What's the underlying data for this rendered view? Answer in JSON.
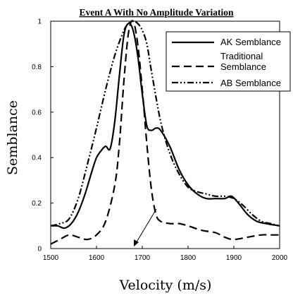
{
  "chart_data": {
    "type": "line",
    "title": "Event A With No Amplitude Variation",
    "xlabel": "Velocity (m/s)",
    "ylabel": "Semblance",
    "xlim": [
      1500,
      2000
    ],
    "ylim": [
      0,
      1
    ],
    "xticks": [
      1500,
      1600,
      1700,
      1800,
      1900,
      2000
    ],
    "yticks": [
      0,
      0.2,
      0.4,
      0.6,
      0.8,
      1
    ],
    "ytick_labels": [
      "0",
      "0.2",
      "0.4",
      "0.6",
      "0.8",
      "1"
    ],
    "grid": false,
    "legend_position": "top-right",
    "annotation": {
      "type": "arrow",
      "points_to": [
        1680,
        0
      ]
    },
    "series": [
      {
        "name": "AK Semblance",
        "style": "solid",
        "x": [
          1500,
          1515,
          1530,
          1545,
          1560,
          1575,
          1590,
          1600,
          1610,
          1620,
          1630,
          1640,
          1650,
          1660,
          1670,
          1680,
          1690,
          1700,
          1710,
          1720,
          1730,
          1740,
          1760,
          1780,
          1800,
          1820,
          1840,
          1860,
          1880,
          1895,
          1910,
          1930,
          1950,
          1970,
          2000
        ],
        "y": [
          0.1,
          0.1,
          0.09,
          0.11,
          0.16,
          0.24,
          0.34,
          0.4,
          0.43,
          0.45,
          0.44,
          0.56,
          0.76,
          0.94,
          0.99,
          0.96,
          0.85,
          0.68,
          0.54,
          0.52,
          0.53,
          0.52,
          0.45,
          0.35,
          0.28,
          0.24,
          0.22,
          0.22,
          0.22,
          0.23,
          0.2,
          0.15,
          0.12,
          0.11,
          0.1
        ]
      },
      {
        "name": "Traditional Semblance",
        "style": "dashed",
        "x": [
          1500,
          1520,
          1540,
          1560,
          1580,
          1600,
          1620,
          1640,
          1650,
          1660,
          1670,
          1680,
          1690,
          1700,
          1710,
          1720,
          1730,
          1740,
          1760,
          1780,
          1800,
          1830,
          1860,
          1880,
          1900,
          1930,
          1960,
          1980,
          2000
        ],
        "y": [
          0.02,
          0.04,
          0.06,
          0.05,
          0.04,
          0.06,
          0.12,
          0.28,
          0.46,
          0.74,
          0.95,
          1.0,
          0.9,
          0.7,
          0.46,
          0.26,
          0.15,
          0.12,
          0.11,
          0.11,
          0.1,
          0.08,
          0.07,
          0.05,
          0.04,
          0.05,
          0.06,
          0.06,
          0.06
        ]
      },
      {
        "name": "AB Semblance",
        "style": "dash-dot-dot",
        "x": [
          1500,
          1520,
          1540,
          1560,
          1580,
          1600,
          1620,
          1640,
          1660,
          1670,
          1680,
          1690,
          1700,
          1710,
          1720,
          1740,
          1760,
          1780,
          1800,
          1820,
          1840,
          1860,
          1880,
          1900,
          1920,
          1940,
          1960,
          1980,
          2000
        ],
        "y": [
          0.1,
          0.11,
          0.13,
          0.22,
          0.37,
          0.53,
          0.7,
          0.85,
          0.96,
          0.99,
          1.0,
          0.99,
          0.96,
          0.9,
          0.78,
          0.56,
          0.42,
          0.33,
          0.27,
          0.25,
          0.24,
          0.23,
          0.23,
          0.22,
          0.19,
          0.15,
          0.12,
          0.11,
          0.1
        ]
      }
    ]
  }
}
